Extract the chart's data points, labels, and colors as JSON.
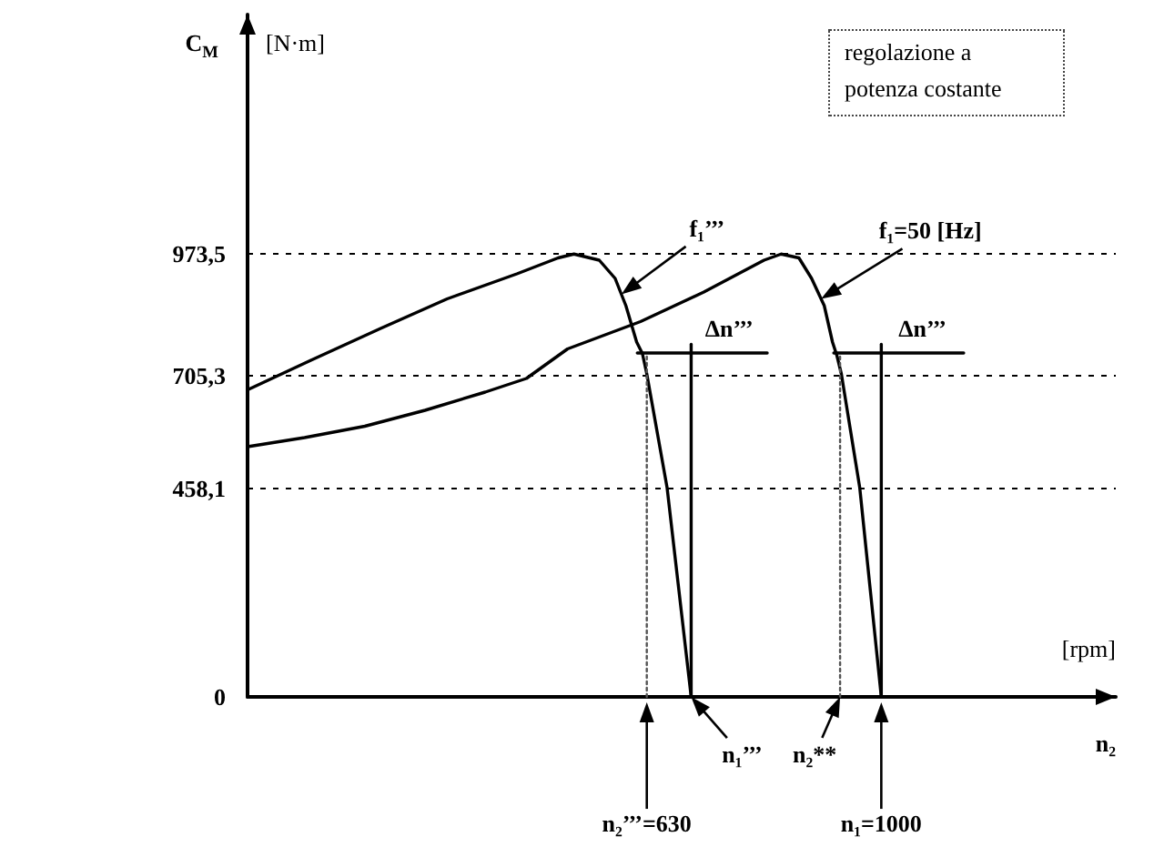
{
  "chart_data": {
    "type": "line",
    "ylabel": "C$_{M}$",
    "xlabel": "n₂",
    "xlim": [
      0,
      1370
    ],
    "ylim": [
      0,
      1500
    ],
    "xticks": [
      {
        "value": 630,
        "label": "n₂’’’=630"
      },
      {
        "value": 1000,
        "label": "n₁=1000"
      }
    ],
    "yticks": [
      0,
      {
        "value": 458.1,
        "label": "458,1"
      },
      {
        "value": 705.3,
        "label": "705,3"
      },
      {
        "value": 973.5,
        "label": "973,5"
      }
    ],
    "grid": "y",
    "series": [
      {
        "x": [
          0,
          100,
          210,
          315,
          425,
          490,
          515,
          555,
          580,
          597,
          614,
          623,
          630,
          662,
          700
        ],
        "values": [
          675,
          740,
          810,
          875,
          930,
          965,
          973.5,
          960,
          920,
          860,
          780,
          755,
          710,
          460,
          0
        ],
        "color": "#000000"
      },
      {
        "x": [
          0,
          90,
          185,
          280,
          375,
          440,
          505,
          620,
          720,
          815,
          842,
          870,
          890,
          910,
          923,
          930,
          937,
          966,
          1000
        ],
        "values": [
          550,
          570,
          595,
          630,
          670,
          700,
          765,
          825,
          890,
          960,
          973.5,
          965,
          920,
          860,
          780,
          750,
          710,
          460,
          0
        ],
        "color": "#000000"
      },
      {
        "x": [
          630,
          630
        ],
        "values": [
          0,
          756
        ],
        "color": "#555555",
        "line_style": "dotted"
      },
      {
        "x": [
          700,
          700
        ],
        "values": [
          0,
          775
        ],
        "color": "#000000"
      },
      {
        "x": [
          615,
          820
        ],
        "values": [
          756,
          756
        ],
        "color": "#000000"
      },
      {
        "x": [
          935,
          935
        ],
        "values": [
          0,
          756
        ],
        "color": "#555555",
        "line_style": "dotted"
      },
      {
        "x": [
          1000,
          1000
        ],
        "values": [
          0,
          775
        ],
        "color": "#000000"
      },
      {
        "x": [
          925,
          1130
        ],
        "values": [
          756,
          756
        ],
        "color": "#000000"
      }
    ],
    "annotations": [
      "[N·m]",
      "regolazione a potenza costante",
      {
        "text": "f₁’’’",
        "x": 590,
        "y": 885
      },
      {
        "text": "f₁=50 [Hz]",
        "x": 905,
        "y": 875
      },
      {
        "text": "Δn’’’",
        "x": 760,
        "y": 756
      },
      {
        "text": "Δn’’’",
        "x": 1065,
        "y": 756
      },
      "[rpm]",
      {
        "text": "n₁’’’",
        "x": 700,
        "y": 0
      },
      {
        "text": "n₂**",
        "x": 935,
        "y": 0
      }
    ]
  }
}
